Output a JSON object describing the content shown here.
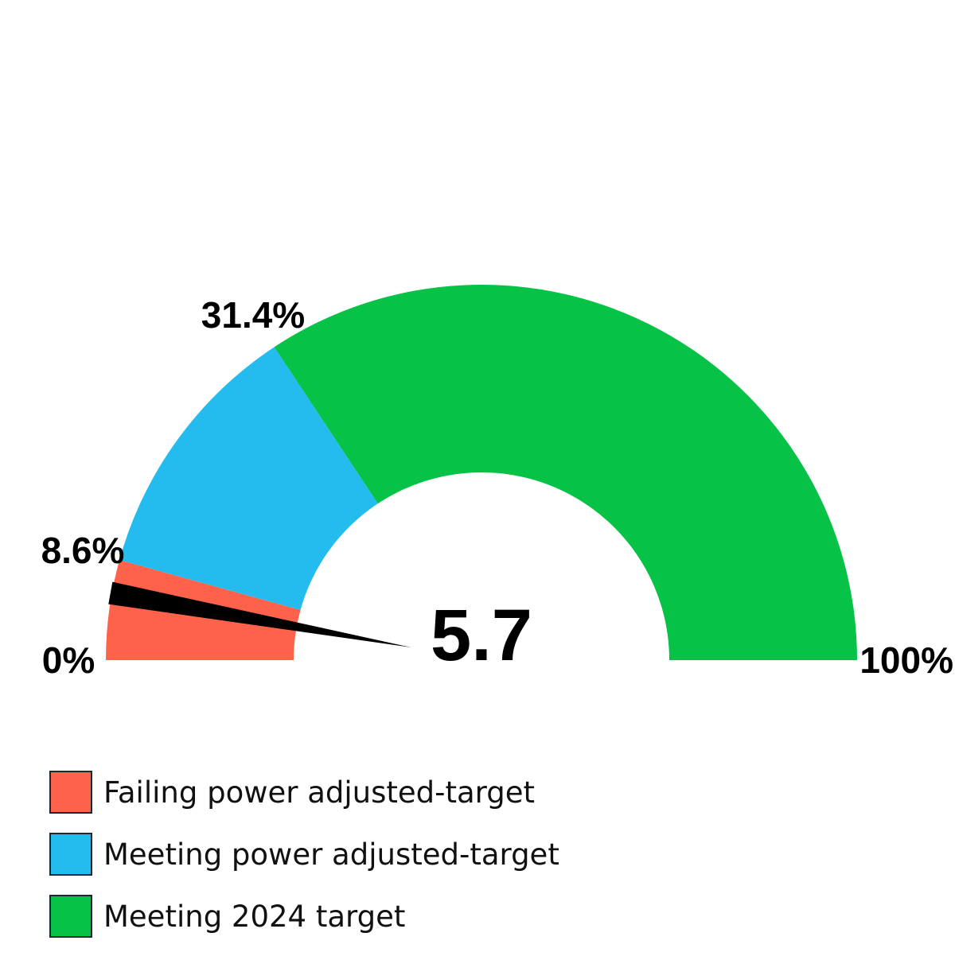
{
  "chart_data": {
    "type": "gauge",
    "range": [
      0,
      100
    ],
    "value": 5.7,
    "value_label": "5.7",
    "bands": [
      {
        "name": "Failing power adjusted-target",
        "from": 0,
        "to": 8.6,
        "color": "#ff624a"
      },
      {
        "name": "Meeting power adjusted-target",
        "from": 8.6,
        "to": 31.4,
        "color": "#24bcee"
      },
      {
        "name": "Meeting 2024 target",
        "from": 31.4,
        "to": 100,
        "color": "#06c247"
      }
    ],
    "boundary_labels": [
      {
        "value": 0,
        "text": "0%"
      },
      {
        "value": 8.6,
        "text": "8.6%"
      },
      {
        "value": 31.4,
        "text": "31.4%"
      },
      {
        "value": 100,
        "text": "100%"
      }
    ],
    "needle_color": "#000000",
    "legend_position": "bottom-left"
  }
}
